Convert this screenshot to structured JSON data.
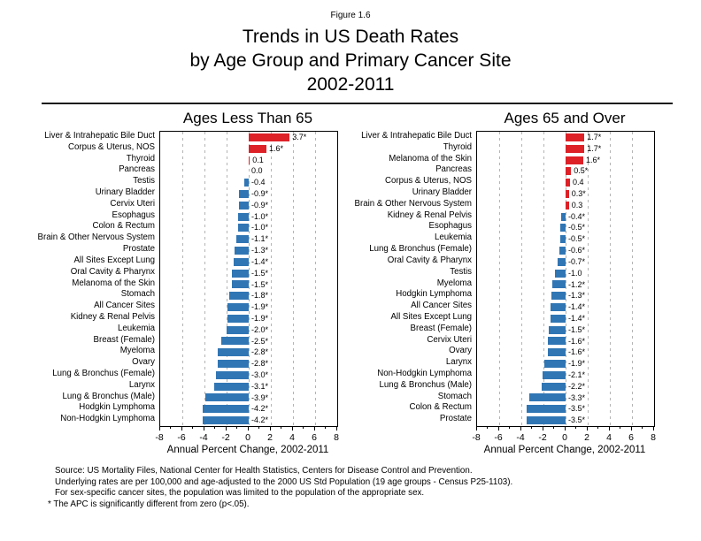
{
  "figure_label": "Figure 1.6",
  "title_lines": [
    "Trends in US Death Rates",
    "by Age Group and Primary Cancer Site",
    "2002-2011"
  ],
  "colors": {
    "bar_positive": "#dd2127",
    "bar_negative": "#3076b4",
    "gridline": "#b4b4b4",
    "axis": "#000000"
  },
  "footnotes": [
    "Source: US Mortality Files, National Center for Health Statistics, Centers for Disease Control and Prevention.",
    "Underlying rates are per 100,000 and age-adjusted to the 2000 US Std Population (19 age groups - Census P25-1103).",
    "For sex-specific cancer sites, the population was limited to the population of the appropriate sex.",
    "* The APC is significantly different from zero (p<.05)."
  ],
  "chart_data": [
    {
      "type": "bar",
      "orientation": "horizontal",
      "title": "Ages Less Than 65",
      "xlabel": "Annual Percent Change, 2002-2011",
      "xlim": [
        -8,
        8
      ],
      "xticks": [
        -8,
        -6,
        -4,
        -2,
        0,
        2,
        4,
        6,
        8
      ],
      "minor_tick_step": 1,
      "grid": "dashed-vertical",
      "categories": [
        "Liver & Intrahepatic Bile Duct",
        "Corpus & Uterus, NOS",
        "Thyroid",
        "Pancreas",
        "Testis",
        "Urinary Bladder",
        "Cervix Uteri",
        "Esophagus",
        "Colon & Rectum",
        "Brain & Other Nervous System",
        "Prostate",
        "All Sites Except Lung",
        "Oral Cavity & Pharynx",
        "Melanoma of the Skin",
        "Stomach",
        "All Cancer Sites",
        "Kidney & Renal Pelvis",
        "Leukemia",
        "Breast (Female)",
        "Myeloma",
        "Ovary",
        "Lung & Bronchus (Female)",
        "Larynx",
        "Lung & Bronchus (Male)",
        "Hodgkin Lymphoma",
        "Non-Hodgkin Lymphoma"
      ],
      "values": [
        3.7,
        1.6,
        0.1,
        0.0,
        -0.4,
        -0.9,
        -0.9,
        -1.0,
        -1.0,
        -1.1,
        -1.3,
        -1.4,
        -1.5,
        -1.5,
        -1.8,
        -1.9,
        -1.9,
        -2.0,
        -2.5,
        -2.8,
        -2.8,
        -3.0,
        -3.1,
        -3.9,
        -4.2,
        -4.2
      ],
      "value_labels": [
        "3.7*",
        "1.6*",
        "0.1",
        "0.0",
        "-0.4",
        "-0.9*",
        "-0.9*",
        "-1.0*",
        "-1.0*",
        "-1.1*",
        "-1.3*",
        "-1.4*",
        "-1.5*",
        "-1.5*",
        "-1.8*",
        "-1.9*",
        "-1.9*",
        "-2.0*",
        "-2.5*",
        "-2.8*",
        "-2.8*",
        "-3.0*",
        "-3.1*",
        "-3.9*",
        "-4.2*",
        "-4.2*"
      ]
    },
    {
      "type": "bar",
      "orientation": "horizontal",
      "title": "Ages 65 and Over",
      "xlabel": "Annual Percent Change, 2002-2011",
      "xlim": [
        -8,
        8
      ],
      "xticks": [
        -8,
        -6,
        -4,
        -2,
        0,
        2,
        4,
        6,
        8
      ],
      "minor_tick_step": 1,
      "grid": "dashed-vertical",
      "categories": [
        "Liver & Intrahepatic Bile Duct",
        "Thyroid",
        "Melanoma of the Skin",
        "Pancreas",
        "Corpus & Uterus, NOS",
        "Urinary Bladder",
        "Brain & Other Nervous System",
        "Kidney & Renal Pelvis",
        "Esophagus",
        "Leukemia",
        "Lung & Bronchus (Female)",
        "Oral Cavity & Pharynx",
        "Testis",
        "Myeloma",
        "Hodgkin Lymphoma",
        "All Cancer Sites",
        "All Sites Except Lung",
        "Breast (Female)",
        "Cervix Uteri",
        "Ovary",
        "Larynx",
        "Non-Hodgkin Lymphoma",
        "Lung & Bronchus (Male)",
        "Stomach",
        "Colon & Rectum",
        "Prostate"
      ],
      "values": [
        1.7,
        1.7,
        1.6,
        0.5,
        0.4,
        0.3,
        0.3,
        -0.4,
        -0.5,
        -0.5,
        -0.6,
        -0.7,
        -1.0,
        -1.2,
        -1.3,
        -1.4,
        -1.4,
        -1.5,
        -1.6,
        -1.6,
        -1.9,
        -2.1,
        -2.2,
        -3.3,
        -3.5,
        -3.5
      ],
      "value_labels": [
        "1.7*",
        "1.7*",
        "1.6*",
        "0.5*",
        "0.4",
        "0.3*",
        "0.3",
        "-0.4*",
        "-0.5*",
        "-0.5*",
        "-0.6*",
        "-0.7*",
        "-1.0",
        "-1.2*",
        "-1.3*",
        "-1.4*",
        "-1.4*",
        "-1.5*",
        "-1.6*",
        "-1.6*",
        "-1.9*",
        "-2.1*",
        "-2.2*",
        "-3.3*",
        "-3.5*",
        "-3.5*"
      ]
    }
  ]
}
